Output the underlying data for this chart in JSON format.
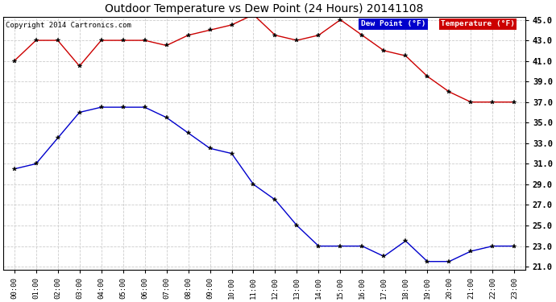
{
  "title": "Outdoor Temperature vs Dew Point (24 Hours) 20141108",
  "copyright": "Copyright 2014 Cartronics.com",
  "hours": [
    "00:00",
    "01:00",
    "02:00",
    "03:00",
    "04:00",
    "05:00",
    "06:00",
    "07:00",
    "08:00",
    "09:00",
    "10:00",
    "11:00",
    "12:00",
    "13:00",
    "14:00",
    "15:00",
    "16:00",
    "17:00",
    "18:00",
    "19:00",
    "20:00",
    "21:00",
    "22:00",
    "23:00"
  ],
  "temperature": [
    41.0,
    43.0,
    43.0,
    40.5,
    43.0,
    43.0,
    43.0,
    42.5,
    43.5,
    44.0,
    44.5,
    45.5,
    43.5,
    43.0,
    43.5,
    45.0,
    43.5,
    42.0,
    41.5,
    39.5,
    38.0,
    37.0,
    37.0,
    37.0
  ],
  "dew_point": [
    30.5,
    31.0,
    33.5,
    36.0,
    36.5,
    36.5,
    36.5,
    35.5,
    34.0,
    32.5,
    32.0,
    29.0,
    27.5,
    25.0,
    23.0,
    23.0,
    23.0,
    22.0,
    23.5,
    21.5,
    21.5,
    22.5,
    23.0,
    23.0
  ],
  "temp_color": "#cc0000",
  "dew_color": "#0000cc",
  "ylim_min": 21.0,
  "ylim_max": 45.0,
  "yticks": [
    21.0,
    23.0,
    25.0,
    27.0,
    29.0,
    31.0,
    33.0,
    35.0,
    37.0,
    39.0,
    41.0,
    43.0,
    45.0
  ],
  "bg_color": "#ffffff",
  "grid_color": "#cccccc",
  "legend_dew_bg": "#0000cc",
  "legend_temp_bg": "#cc0000",
  "legend_text_color": "#ffffff",
  "title_fontsize": 10,
  "copyright_fontsize": 6.5,
  "tick_fontsize": 7.5,
  "xtick_fontsize": 6.5
}
